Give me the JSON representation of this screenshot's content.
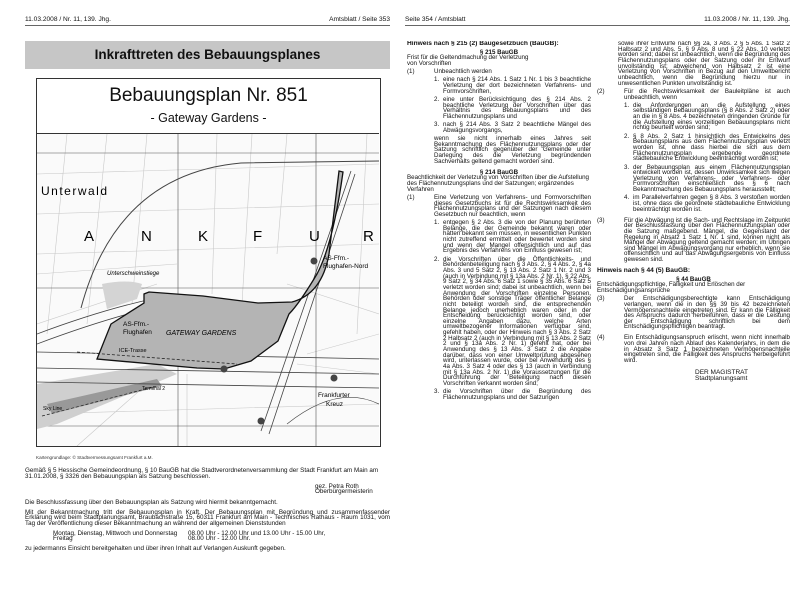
{
  "left_page": {
    "header_left": "11.03.2008 / Nr. 11, 139. Jhg.",
    "header_right": "Amtsblatt / Seite 353",
    "title": "Inkrafttreten des Bebauungsplanes",
    "plan_title": "Bebauungsplan Nr. 851",
    "plan_subtitle": "- Gateway Gardens -",
    "map": {
      "fill_color": "#b4b4b4",
      "labels": {
        "unterwald": "Unterwald",
        "frankfurt_letters": [
          "A",
          "N",
          "K",
          "F",
          "U",
          "R"
        ],
        "unterschweinstiege": "Unterschweinstiege",
        "as_nord_1": "AS-Ffm.-",
        "as_nord_2": "Flughafen-Nord",
        "as_1": "AS-Ffm.-",
        "as_2": "Flughafen",
        "gateway": "GATEWAY GARDENS",
        "ice": "ICE-Trasse",
        "terminal": "Terminal 2",
        "skyline": "Sky Line",
        "kreuz_1": "Frankfurter",
        "kreuz_2": "Kreuz"
      }
    },
    "map_caption": "Kartengrundlage: © Stadtvermessungsamt Frankfurt a.M.",
    "para1": "Gemäß § 5 Hessische Gemeindeordnung, § 10 BauGB hat die Stadtverordnetenversammlung der Stadt Frankfurt am Main am 31.01.2008, § 3326 den Bebauungsplan als Satzung beschlossen.",
    "signature_1": "gez. Petra Roth",
    "signature_2": "Oberbürgermeisterin",
    "para2": "Die Beschlussfassung über den Bebauungsplan als Satzung wird hiermit bekanntgemacht.",
    "para3": "Mit der Bekanntmachung tritt der Bebauungsplan in Kraft. Der Bebauungsplan mit Begründung und zusammenfassender Erklärung wird beim Stadtplanungsamt, Braubachstraße 15, 60311 Frankfurt am Main - Technisches Rathaus - Raum 1031, vom Tag der Veröffentlichung dieser Bekanntmachung an während der allgemeinen Dienststunden",
    "hours": [
      {
        "days": "Montag, Dienstag, Mittwoch und Donnerstag",
        "times": "08.00 Uhr - 12.00 Uhr und 13.00 Uhr - 15.00 Uhr,"
      },
      {
        "days": "Freitag",
        "times": "08.00 Uhr - 12.00 Uhr."
      }
    ],
    "para4": "zu jedermanns Einsicht bereitgehalten und über ihren Inhalt auf Verlangen Auskunft gegeben."
  },
  "right_page": {
    "header_left": "Seite 354 / Amtsblatt",
    "header_right": "11.03.2008 / Nr. 11, 139. Jhg.",
    "s215": {
      "hinweis": "Hinweis nach § 215 (2) Baugesetzbuch (BauGB):",
      "heading": "§ 215 BauGB",
      "subtitle": "Frist für die Geltendmachung der Verletzung von Vorschriften",
      "p1_num": "(1)",
      "p1_text": "Unbeachtlich werden",
      "items": [
        {
          "num": "1.",
          "text": "eine nach § 214 Abs. 1 Satz 1 Nr. 1 bis 3 beachtliche Verletzung der dort bezeichneten Verfahrens- und Formvorschriften,"
        },
        {
          "num": "2.",
          "text": "eine unter Berücksichtigung des § 214 Abs. 2 beachtliche Verletzung der Vorschriften über das Verhältnis des Bebauungsplans und des Flächennutzungsplans und"
        },
        {
          "num": "3.",
          "text": "nach § 214 Abs. 3 Satz 2 beachtliche Mängel des Abwägungsvorgangs,"
        }
      ],
      "tail": "wenn sie nicht innerhalb eines Jahres seit Bekanntmachung des Flächennutzungsplans oder der Satzung schriftlich gegenüber der Gemeinde unter Darlegung des die Verletzung begründenden Sachverhalts geltend gemacht worden sind."
    },
    "s214": {
      "heading": "§ 214 BauGB",
      "subtitle": "Beachtlichkeit der Verletzung von Vorschriften über die Aufstellung des Flächennutzungsplans und der Satzungen; ergänzendes Verfahren",
      "p1_num": "(1)",
      "p1_text": "Eine Verletzung von Verfahrens- und Formvorschriften dieses Gesetzbuchs ist für die Rechtswirksamkeit des Flächennutzungsplans und der Satzungen nach diesem Gesetzbuch nur beachtlich, wenn",
      "items": [
        {
          "num": "1.",
          "text": "entgegen § 2 Abs. 3 die von der Planung berührten Belange, die der Gemeinde bekannt waren oder hätten bekannt sein müssen, in wesentlichen Punkten nicht zutreffend ermittelt oder bewertet worden sind und wenn der Mangel offensichtlich und auf das Ergebnis des Verfahrens von Einfluss gewesen ist;"
        },
        {
          "num": "2.",
          "text": "die Vorschriften über die Öffentlichkeits- und Behördenbeteiligung nach § 3 Abs. 2, § 4 Abs. 2, § 4a Abs. 3 und 5 Satz 2, § 13 Abs. 2 Satz 1 Nr. 2 und 3 (auch in Verbindung mit § 13a Abs. 2 Nr. 1), § 22 Abs. 9 Satz 2, § 34 Abs. 6 Satz 1 sowie § 35 Abs. 6 Satz 5 verletzt worden sind; dabei ist unbeachtlich, wenn bei Anwendung der Vorschriften einzelne Personen, Behörden oder sonstige Träger öffentlicher Belange nicht beteiligt worden sind, die entsprechenden Belange jedoch unerheblich waren oder in der Entscheidung berücksichtigt worden sind, oder einzelne Angaben dazu, welche Arten umweltbezogener Informationen verfügbar sind, gefehlt haben, oder der Hinweis nach § 3 Abs. 2 Satz 2 Halbsatz 2 (auch in Verbindung mit § 13 Abs. 2 Satz 2 und § 13a Abs. 2 Nr. 1) gefehlt hat, oder bei Anwendung des § 13 Abs. 3 Satz 2 die Angabe darüber, dass von einer Umweltprüfung abgesehen wird, unterlassen wurde, oder bei Anwendung des § 4a Abs. 3 Satz 4 oder des § 13 (auch in Verbindung mit § 13a Abs. 2 Nr. 1) die Voraussetzungen für die Durchführung der Beteiligung nach diesen Vorschriften verkannt worden sind;"
        },
        {
          "num": "3.",
          "text": "die Vorschriften über die Begründung des Flächennutzungsplans und der Satzungen"
        }
      ],
      "item3_cont": "sowie ihrer Entwürfe nach §§ 2a, 3 Abs. 2 § 5 Abs. 1 Satz 2 Halbsatz 2 und Abs. 5, § 9 Abs. 8 und § 22 Abs. 10 verletzt worden sind; dabei ist unbeachtlich, wenn die Begründung des Flächennutzungsplans oder der Satzung oder ihr Entwurf unvollständig ist; abweichend von Halbsatz 2 ist eine Verletzung von Vorschriften in Bezug auf den Umweltbericht unbeachtlich, wenn die Begründung hierzu nur in unwesentlichen Punkten unvollständig ist.",
      "p2_num": "(2)",
      "p2_text": "Für die Rechtswirksamkeit der Bauleitpläne ist auch unbeachtlich, wenn",
      "p2_items": [
        {
          "num": "1.",
          "text": "die Anforderungen an die Aufstellung eines selbständigen Bebauungsplans (§ 8 Abs. 2 Satz 2) oder an die in § 8 Abs. 4 bezeichneten dringenden Gründe für die Aufstellung eines vorzeitigen Bebauungsplans nicht richtig beurteilt worden sind;"
        },
        {
          "num": "2.",
          "text": "§ 8 Abs. 2 Satz 1 hinsichtlich des Entwickelns des Bebauungsplans aus dem Flächennutzungsplan verletzt worden ist, ohne dass hierbei die sich aus dem Flächennutzungsplan ergebende geordnete städtebauliche Entwicklung beeinträchtigt worden ist;"
        },
        {
          "num": "3.",
          "text": "der Bebauungsplan aus einem Flächennutzungsplan entwickelt worden ist, dessen Unwirksamkeit sich wegen Verletzung von Verfahrens- oder Verfahrens- oder Formvorschriften einschließlich des § 6 nach Bekanntmachung des Bebauungsplans herausstellt;"
        },
        {
          "num": "4.",
          "text": "im Parallelverfahren gegen § 8 Abs. 3 verstoßen worden ist, ohne dass die geordnete städtebauliche Entwicklung beeinträchtigt worden ist."
        }
      ],
      "p3_num": "(3)",
      "p3_text": "Für die Abwägung ist die Sach- und Rechtslage im Zeitpunkt der Beschlussfassung über den Flächennutzungsplan oder die Satzung maßgebend. Mängel, die Gegenstand der Regelung in Absatz 1 Satz 1 Nr. 1 sind, können nicht als Mängel der Abwägung geltend gemacht werden; im Übrigen sind Mängel im Abwägungsvorgang nur erheblich, wenn sie offensichtlich und auf das Abwägungsergebnis von Einfluss gewesen sind."
    },
    "s44": {
      "hinweis": "Hinweis nach § 44 (5) BauGB:",
      "heading": "§ 44 BauGB",
      "subtitle": "Entschädigungspflichtige, Fälligkeit und Erlöschen der Entschädigungsansprüche",
      "p3_num": "(3)",
      "p3_text": "Der Entschädigungsberechtigte kann Entschädigung verlangen, wenn die in den §§ 39 bis 42 bezeichneten Vermögensnachteile eingetreten sind. Er kann die Fälligkeit des Anspruchs dadurch herbeiführen, dass er die Leistung der Entschädigung schriftlich bei dem Entschädigungspflichtigen beantragt.",
      "p4_num": "(4)",
      "p4_text": "Ein Entschädigungsanspruch erlischt, wenn nicht innerhalb von drei Jahren nach Ablauf des Kalenderjahrs, in dem die in Absatz 3 Satz 1 bezeichneten Vermögensnachteile eingetreten sind, die Fälligkeit des Anspruchs herbeigeführt wird."
    },
    "signoff_1": "DER MAGISTRAT",
    "signoff_2": "Stadtplanungsamt"
  }
}
